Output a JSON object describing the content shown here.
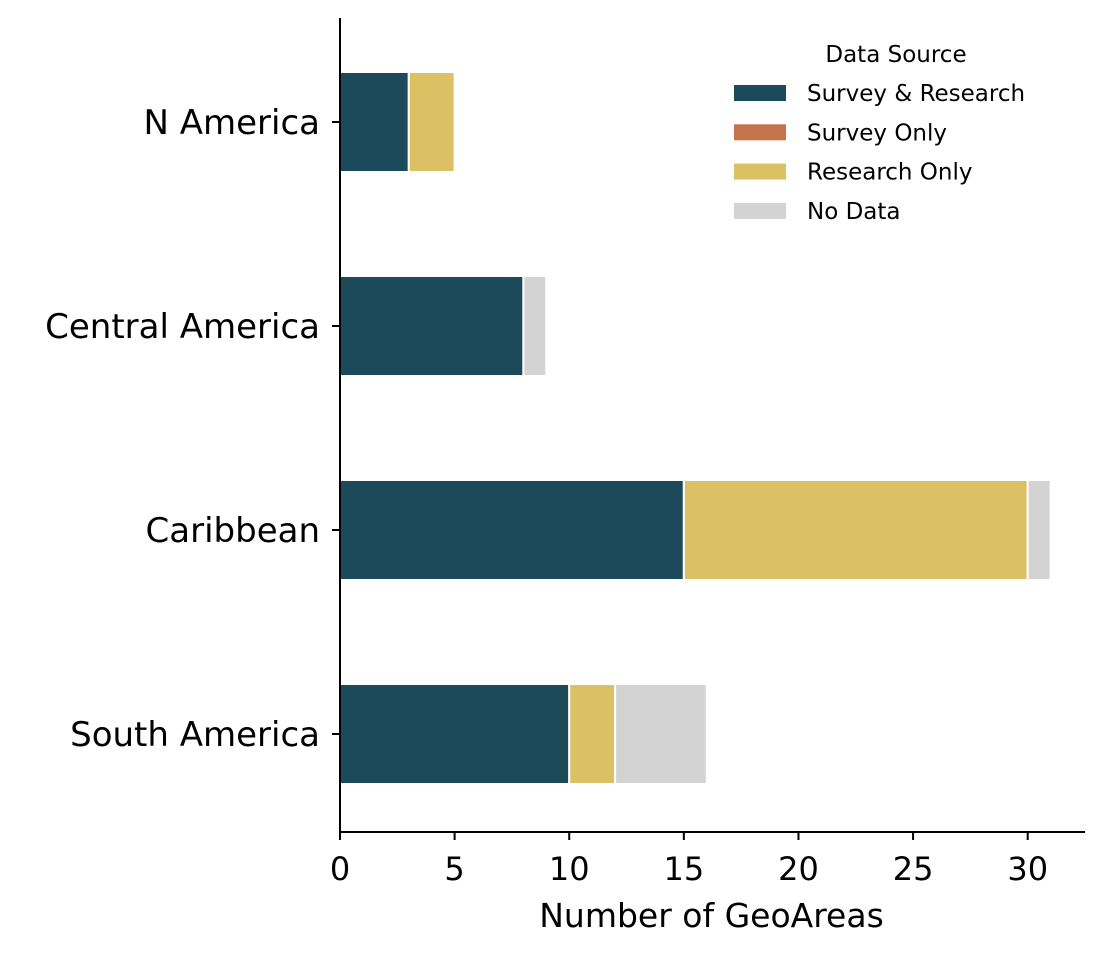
{
  "chart_data": {
    "type": "bar",
    "orientation": "horizontal",
    "stacked": true,
    "title": "",
    "xlabel": "Number of GeoAreas",
    "ylabel": "",
    "categories": [
      "N America",
      "Central America",
      "Caribbean",
      "South America"
    ],
    "xlim": [
      0,
      32.5
    ],
    "xticks": [
      0,
      5,
      10,
      15,
      20,
      25,
      30
    ],
    "grid": false,
    "legend": {
      "title": "Data Source",
      "placement": "top-right"
    },
    "series": [
      {
        "name": "Survey & Research",
        "color": "#1c4a5a",
        "values": [
          3,
          8,
          15,
          10
        ]
      },
      {
        "name": "Survey Only",
        "color": "#c4734d",
        "values": [
          0,
          0,
          0,
          0
        ]
      },
      {
        "name": "Research Only",
        "color": "#dbc064",
        "values": [
          2,
          0,
          15,
          2
        ]
      },
      {
        "name": "No Data",
        "color": "#d3d3d3",
        "values": [
          0,
          1,
          1,
          4
        ]
      }
    ]
  }
}
